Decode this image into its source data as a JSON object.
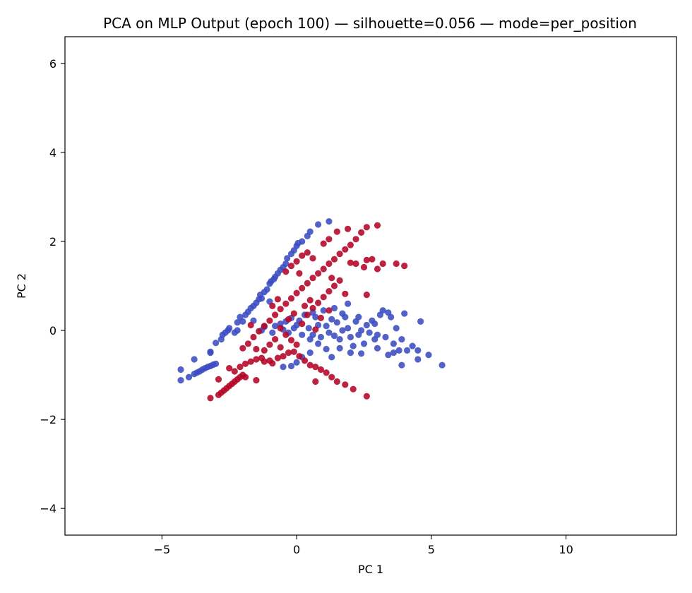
{
  "chart_data": {
    "type": "scatter",
    "title": "PCA on MLP Output (epoch 100) — silhouette=0.056 — mode=per_position",
    "xlabel": "PC 1",
    "ylabel": "PC 2",
    "xlim": [
      -8.6,
      14.1
    ],
    "ylim": [
      -4.6,
      6.6
    ],
    "xticks": [
      -5,
      0,
      5,
      10
    ],
    "yticks": [
      -4,
      -2,
      0,
      2,
      4,
      6
    ],
    "grid": false,
    "legend": "none",
    "series": [
      {
        "color": "#3b4cc0",
        "points": [
          [
            -4.3,
            -1.12
          ],
          [
            -4.3,
            -0.88
          ],
          [
            -4.0,
            -1.05
          ],
          [
            -3.8,
            -0.98
          ],
          [
            -3.7,
            -0.95
          ],
          [
            -3.6,
            -0.92
          ],
          [
            -3.5,
            -0.88
          ],
          [
            -3.4,
            -0.85
          ],
          [
            -3.3,
            -0.82
          ],
          [
            -3.2,
            -0.8
          ],
          [
            -3.1,
            -0.77
          ],
          [
            -3.0,
            -0.75
          ],
          [
            -3.2,
            -0.48
          ],
          [
            -3.2,
            -0.5
          ],
          [
            -3.8,
            -0.65
          ],
          [
            -3.0,
            -0.28
          ],
          [
            -2.8,
            -0.2
          ],
          [
            -2.75,
            -0.1
          ],
          [
            -2.65,
            -0.05
          ],
          [
            -2.55,
            0.0
          ],
          [
            -2.5,
            0.05
          ],
          [
            -2.3,
            -0.05
          ],
          [
            -2.2,
            0.18
          ],
          [
            -2.1,
            0.3
          ],
          [
            -2.0,
            0.2
          ],
          [
            -1.9,
            0.35
          ],
          [
            -1.8,
            0.42
          ],
          [
            -1.7,
            0.5
          ],
          [
            -1.6,
            0.55
          ],
          [
            -1.5,
            0.62
          ],
          [
            -1.4,
            0.7
          ],
          [
            -1.35,
            0.8
          ],
          [
            -1.3,
            0.72
          ],
          [
            -1.2,
            0.86
          ],
          [
            -1.1,
            0.92
          ],
          [
            -1.0,
            1.05
          ],
          [
            -0.95,
            1.1
          ],
          [
            -0.85,
            1.15
          ],
          [
            -0.8,
            1.2
          ],
          [
            -0.7,
            1.28
          ],
          [
            -0.6,
            1.36
          ],
          [
            -0.5,
            1.42
          ],
          [
            -0.4,
            1.5
          ],
          [
            -0.35,
            1.62
          ],
          [
            -0.2,
            1.72
          ],
          [
            -0.1,
            1.8
          ],
          [
            0.0,
            1.9
          ],
          [
            0.05,
            1.96
          ],
          [
            0.2,
            2.0
          ],
          [
            0.4,
            2.12
          ],
          [
            0.5,
            2.22
          ],
          [
            0.8,
            2.38
          ],
          [
            1.2,
            2.45
          ],
          [
            -1.3,
            0.0
          ],
          [
            -1.2,
            0.08
          ],
          [
            -0.9,
            -0.05
          ],
          [
            -0.8,
            0.1
          ],
          [
            -0.6,
            0.15
          ],
          [
            -0.4,
            0.2
          ],
          [
            -0.3,
            -0.05
          ],
          [
            -0.2,
            0.28
          ],
          [
            -0.1,
            0.05
          ],
          [
            0.0,
            0.12
          ],
          [
            0.1,
            0.22
          ],
          [
            0.2,
            -0.1
          ],
          [
            0.3,
            0.35
          ],
          [
            0.45,
            0.05
          ],
          [
            0.5,
            -0.2
          ],
          [
            0.6,
            -0.1
          ],
          [
            0.7,
            0.3
          ],
          [
            0.8,
            0.12
          ],
          [
            0.9,
            -0.15
          ],
          [
            1.0,
            0.45
          ],
          [
            1.1,
            0.1
          ],
          [
            1.2,
            -0.05
          ],
          [
            1.3,
            0.25
          ],
          [
            1.4,
            -0.12
          ],
          [
            1.5,
            0.18
          ],
          [
            1.6,
            -0.2
          ],
          [
            1.7,
            0.0
          ],
          [
            1.8,
            0.3
          ],
          [
            1.9,
            0.05
          ],
          [
            2.0,
            -0.15
          ],
          [
            2.1,
            -0.35
          ],
          [
            2.2,
            0.2
          ],
          [
            2.3,
            -0.1
          ],
          [
            2.4,
            0.0
          ],
          [
            2.5,
            -0.3
          ],
          [
            2.6,
            0.12
          ],
          [
            2.7,
            -0.05
          ],
          [
            2.8,
            0.22
          ],
          [
            2.9,
            -0.2
          ],
          [
            3.0,
            -0.4
          ],
          [
            3.1,
            0.35
          ],
          [
            3.2,
            0.45
          ],
          [
            3.3,
            -0.15
          ],
          [
            3.4,
            0.4
          ],
          [
            3.5,
            0.3
          ],
          [
            3.6,
            -0.3
          ],
          [
            3.7,
            0.05
          ],
          [
            3.8,
            -0.45
          ],
          [
            3.9,
            -0.2
          ],
          [
            4.0,
            0.38
          ],
          [
            4.1,
            -0.45
          ],
          [
            4.3,
            -0.35
          ],
          [
            4.5,
            -0.45
          ],
          [
            4.6,
            0.2
          ],
          [
            4.9,
            -0.55
          ],
          [
            5.4,
            -0.78
          ],
          [
            -0.2,
            -0.8
          ],
          [
            0.0,
            -0.72
          ],
          [
            0.2,
            -0.6
          ],
          [
            -0.5,
            -0.82
          ],
          [
            0.5,
            -0.5
          ],
          [
            0.8,
            -0.3
          ],
          [
            1.1,
            -0.42
          ],
          [
            1.3,
            -0.6
          ],
          [
            1.6,
            -0.4
          ],
          [
            2.0,
            -0.5
          ],
          [
            2.4,
            -0.52
          ],
          [
            3.0,
            -0.1
          ],
          [
            3.4,
            -0.55
          ],
          [
            4.5,
            -0.65
          ],
          [
            3.9,
            -0.78
          ],
          [
            1.9,
            0.6
          ],
          [
            2.3,
            0.3
          ],
          [
            2.9,
            0.15
          ],
          [
            1.4,
            0.5
          ],
          [
            0.6,
            0.4
          ],
          [
            -0.5,
            0.02
          ],
          [
            -1.0,
            0.65
          ],
          [
            -1.6,
            0.22
          ],
          [
            -2.2,
            0.0
          ],
          [
            1.7,
            0.38
          ],
          [
            3.6,
            -0.5
          ]
        ]
      },
      {
        "color": "#b40426",
        "points": [
          [
            -3.2,
            -1.52
          ],
          [
            -2.9,
            -1.45
          ],
          [
            -2.8,
            -1.4
          ],
          [
            -2.7,
            -1.35
          ],
          [
            -2.6,
            -1.3
          ],
          [
            -2.5,
            -1.25
          ],
          [
            -2.4,
            -1.2
          ],
          [
            -2.3,
            -1.15
          ],
          [
            -2.2,
            -1.1
          ],
          [
            -2.1,
            -1.05
          ],
          [
            -2.0,
            -1.0
          ],
          [
            -1.9,
            -1.05
          ],
          [
            -1.5,
            -1.12
          ],
          [
            -2.9,
            -1.1
          ],
          [
            -2.5,
            -0.85
          ],
          [
            -2.3,
            -0.92
          ],
          [
            -2.1,
            -0.82
          ],
          [
            -1.9,
            -0.75
          ],
          [
            -1.7,
            -0.7
          ],
          [
            -1.5,
            -0.65
          ],
          [
            -1.3,
            -0.62
          ],
          [
            -1.2,
            -0.7
          ],
          [
            -1.0,
            -0.68
          ],
          [
            -0.9,
            -0.74
          ],
          [
            -0.7,
            -0.62
          ],
          [
            -0.5,
            -0.58
          ],
          [
            -0.3,
            -0.5
          ],
          [
            -0.1,
            -0.48
          ],
          [
            0.1,
            -0.58
          ],
          [
            0.3,
            -0.68
          ],
          [
            0.5,
            -0.78
          ],
          [
            0.7,
            -0.82
          ],
          [
            0.9,
            -0.88
          ],
          [
            1.1,
            -0.95
          ],
          [
            1.3,
            -1.05
          ],
          [
            1.5,
            -1.15
          ],
          [
            1.8,
            -1.22
          ],
          [
            2.1,
            -1.32
          ],
          [
            2.6,
            -1.48
          ],
          [
            0.7,
            -1.15
          ],
          [
            -2.0,
            -0.4
          ],
          [
            -1.8,
            -0.3
          ],
          [
            -1.6,
            -0.15
          ],
          [
            -1.4,
            -0.02
          ],
          [
            -1.2,
            0.1
          ],
          [
            -1.0,
            0.22
          ],
          [
            -0.8,
            0.35
          ],
          [
            -0.6,
            0.48
          ],
          [
            -0.4,
            0.6
          ],
          [
            -0.2,
            0.72
          ],
          [
            0.0,
            0.84
          ],
          [
            0.2,
            0.95
          ],
          [
            0.4,
            1.06
          ],
          [
            0.6,
            1.18
          ],
          [
            0.8,
            1.28
          ],
          [
            1.0,
            1.38
          ],
          [
            1.2,
            1.5
          ],
          [
            1.4,
            1.6
          ],
          [
            1.6,
            1.72
          ],
          [
            1.8,
            1.82
          ],
          [
            2.0,
            1.92
          ],
          [
            2.2,
            2.05
          ],
          [
            2.4,
            2.2
          ],
          [
            2.6,
            2.32
          ],
          [
            3.0,
            2.36
          ],
          [
            1.0,
            1.95
          ],
          [
            1.2,
            2.05
          ],
          [
            1.5,
            2.22
          ],
          [
            1.9,
            2.28
          ],
          [
            0.4,
            1.75
          ],
          [
            0.2,
            1.68
          ],
          [
            0.0,
            1.55
          ],
          [
            -0.2,
            1.45
          ],
          [
            -0.4,
            1.32
          ],
          [
            0.6,
            1.62
          ],
          [
            -0.6,
            0.05
          ],
          [
            -0.4,
            -0.1
          ],
          [
            -0.2,
            -0.22
          ],
          [
            0.0,
            -0.32
          ],
          [
            0.2,
            0.15
          ],
          [
            0.4,
            0.35
          ],
          [
            0.6,
            0.5
          ],
          [
            0.8,
            0.62
          ],
          [
            1.0,
            0.75
          ],
          [
            1.2,
            0.88
          ],
          [
            1.4,
            1.0
          ],
          [
            1.6,
            1.12
          ],
          [
            1.8,
            0.82
          ],
          [
            2.0,
            1.52
          ],
          [
            2.2,
            1.5
          ],
          [
            2.5,
            1.42
          ],
          [
            2.8,
            1.6
          ],
          [
            3.2,
            1.5
          ],
          [
            3.7,
            1.5
          ],
          [
            4.0,
            1.45
          ],
          [
            3.0,
            1.38
          ],
          [
            2.6,
            1.58
          ],
          [
            1.2,
            0.45
          ],
          [
            0.9,
            0.28
          ],
          [
            -1.0,
            -0.32
          ],
          [
            -0.8,
            -0.2
          ],
          [
            -1.2,
            -0.45
          ],
          [
            -0.6,
            -0.38
          ],
          [
            -1.5,
            -0.42
          ],
          [
            0.3,
            0.55
          ],
          [
            0.5,
            0.68
          ],
          [
            -0.3,
            0.25
          ],
          [
            -0.1,
            0.38
          ],
          [
            1.3,
            1.18
          ],
          [
            2.6,
            0.8
          ],
          [
            0.7,
            0.02
          ],
          [
            -1.7,
            0.12
          ],
          [
            -0.9,
            0.55
          ],
          [
            0.1,
            1.28
          ],
          [
            -0.7,
            0.7
          ]
        ]
      }
    ]
  }
}
